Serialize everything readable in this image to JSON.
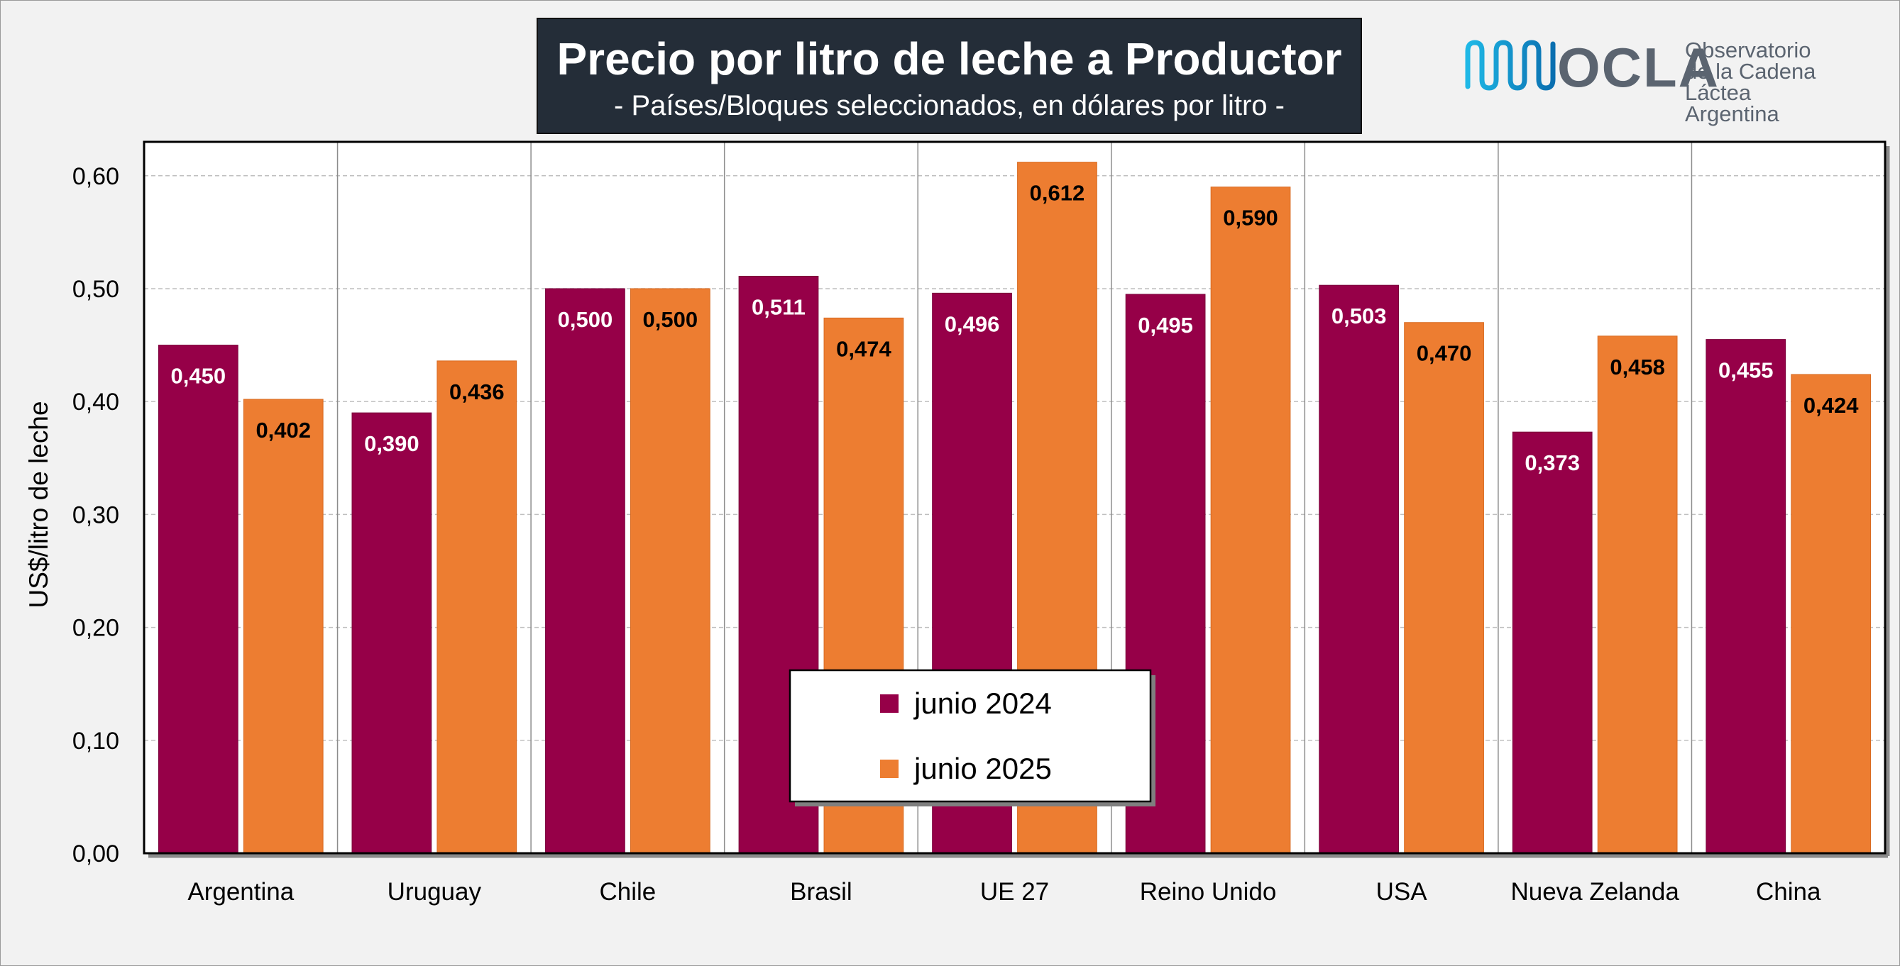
{
  "header": {
    "title": "Precio por litro de leche a Productor",
    "subtitle": "- Países/Bloques seleccionados, en dólares por litro -"
  },
  "logo": {
    "name": "OCLA",
    "line1": "Observatorio",
    "line2": "de la Cadena Láctea",
    "line3": "Argentina"
  },
  "colors": {
    "series1": "#960048",
    "series2": "#ed7d31",
    "background": "#f2f2f2",
    "grid": "#bfbfbf"
  },
  "chart_data": {
    "type": "bar",
    "title": "Precio por litro de leche a Productor",
    "subtitle": "- Países/Bloques seleccionados, en dólares por litro -",
    "ylabel": "US$/litro de leche",
    "xlabel": "",
    "ylim": [
      0,
      0.63
    ],
    "yticks": [
      "0,00",
      "0,10",
      "0,20",
      "0,30",
      "0,40",
      "0,50",
      "0,60"
    ],
    "ytick_values": [
      0,
      0.1,
      0.2,
      0.3,
      0.4,
      0.5,
      0.6
    ],
    "grid": true,
    "legend_position": "bottom-center",
    "categories": [
      "Argentina",
      "Uruguay",
      "Chile",
      "Brasil",
      "UE 27",
      "Reino Unido",
      "USA",
      "Nueva Zelanda",
      "China"
    ],
    "series": [
      {
        "name": "junio 2024",
        "values": [
          0.45,
          0.39,
          0.5,
          0.511,
          0.496,
          0.495,
          0.503,
          0.373,
          0.455
        ],
        "labels": [
          "0,450",
          "0,390",
          "0,500",
          "0,511",
          "0,496",
          "0,495",
          "0,503",
          "0,373",
          "0,455"
        ]
      },
      {
        "name": "junio 2025",
        "values": [
          0.402,
          0.436,
          0.5,
          0.474,
          0.612,
          0.59,
          0.47,
          0.458,
          0.424
        ],
        "labels": [
          "0,402",
          "0,436",
          "0,500",
          "0,474",
          "0,612",
          "0,590",
          "0,470",
          "0,458",
          "0,424"
        ]
      }
    ]
  }
}
